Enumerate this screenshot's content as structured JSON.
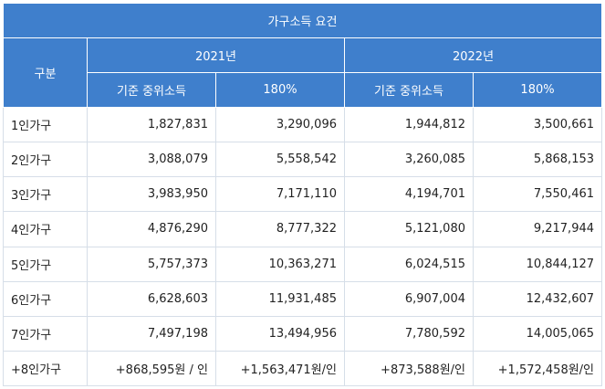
{
  "table": {
    "title": "가구소득 요건",
    "group_header": "구분",
    "years": [
      "2021년",
      "2022년"
    ],
    "sub_headers": [
      "기준 중위소득",
      "180%",
      "기준 중위소득",
      "180%"
    ],
    "rows": [
      {
        "label": "1인가구",
        "v2021_median": "1,827,831",
        "v2021_180": "3,290,096",
        "v2022_median": "1,944,812",
        "v2022_180": "3,500,661"
      },
      {
        "label": "2인가구",
        "v2021_median": "3,088,079",
        "v2021_180": "5,558,542",
        "v2022_median": "3,260,085",
        "v2022_180": "5,868,153"
      },
      {
        "label": "3인가구",
        "v2021_median": "3,983,950",
        "v2021_180": "7,171,110",
        "v2022_median": "4,194,701",
        "v2022_180": "7,550,461"
      },
      {
        "label": "4인가구",
        "v2021_median": "4,876,290",
        "v2021_180": "8,777,322",
        "v2022_median": "5,121,080",
        "v2022_180": "9,217,944"
      },
      {
        "label": "5인가구",
        "v2021_median": "5,757,373",
        "v2021_180": "10,363,271",
        "v2022_median": "6,024,515",
        "v2022_180": "10,844,127"
      },
      {
        "label": "6인가구",
        "v2021_median": "6,628,603",
        "v2021_180": "11,931,485",
        "v2022_median": "6,907,004",
        "v2022_180": "12,432,607"
      },
      {
        "label": "7인가구",
        "v2021_median": "7,497,198",
        "v2021_180": "13,494,956",
        "v2022_median": "7,780,592",
        "v2022_180": "14,005,065"
      },
      {
        "label": "+8인가구",
        "v2021_median": "+868,595원 / 인",
        "v2021_180": "+1,563,471원/인",
        "v2022_median": "+873,588원/인",
        "v2022_180": "+1,572,458원/인"
      }
    ]
  }
}
